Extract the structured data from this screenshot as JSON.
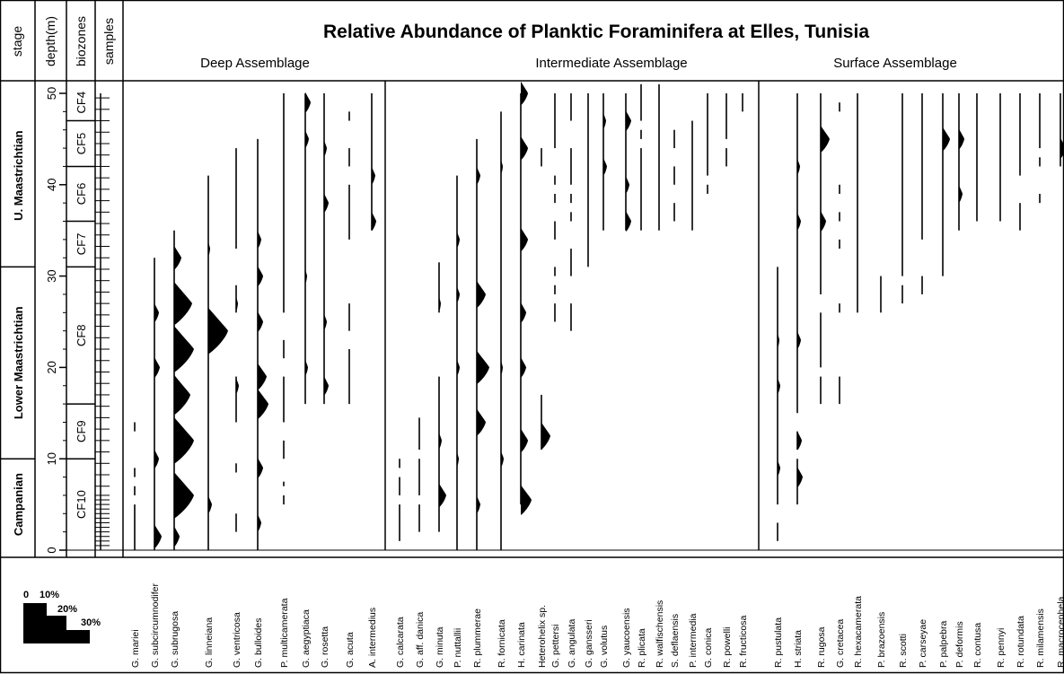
{
  "chart_data": {
    "type": "area",
    "title": "Relative Abundance of Planktic Foraminifera at Elles, Tunisia",
    "header_labels": {
      "stage": "stage",
      "depth": "depth(m)",
      "biozones": "biozones",
      "samples": "samples"
    },
    "assemblages": [
      {
        "name": "Deep Assemblage"
      },
      {
        "name": "Intermediate Assemblage"
      },
      {
        "name": "Surface Assemblage"
      }
    ],
    "depth_axis": {
      "range": [
        0,
        51
      ],
      "ticks": [
        "0",
        "10",
        "20",
        "30",
        "40",
        "50"
      ],
      "tick_values": [
        0,
        10,
        20,
        30,
        40,
        50
      ]
    },
    "stages": [
      {
        "name": "Campanian",
        "from": 0,
        "to": 10
      },
      {
        "name": "Lower Maastrichtian",
        "from": 10,
        "to": 31
      },
      {
        "name": "U. Maastrichtian",
        "from": 31,
        "to": 51
      }
    ],
    "biozones": [
      {
        "name": "CF10",
        "from": 0,
        "to": 10
      },
      {
        "name": "CF9",
        "from": 10,
        "to": 16
      },
      {
        "name": "CF8",
        "from": 16,
        "to": 31
      },
      {
        "name": "CF7",
        "from": 31,
        "to": 36
      },
      {
        "name": "CF6",
        "from": 36,
        "to": 42
      },
      {
        "name": "CF5",
        "from": 42,
        "to": 47
      },
      {
        "name": "CF4",
        "from": 47,
        "to": 51
      }
    ],
    "scale_labels": [
      "0",
      "10%",
      "20%",
      "30%"
    ],
    "scale_levels": [
      0,
      10,
      20,
      30
    ],
    "species": [
      {
        "name": "G. mariei",
        "group": 0,
        "range": [
          [
            0,
            5
          ],
          [
            6,
            7
          ],
          [
            8,
            9
          ],
          [
            13,
            14
          ]
        ],
        "peaks": []
      },
      {
        "name": "G. subcircumnodifer",
        "group": 0,
        "range": [
          [
            0,
            32
          ]
        ],
        "peaks": [
          [
            1.5,
            8
          ],
          [
            10,
            5
          ],
          [
            20,
            6
          ],
          [
            26,
            5
          ]
        ]
      },
      {
        "name": "G. subrugosa",
        "group": 0,
        "range": [
          [
            0,
            35
          ]
        ],
        "peaks": [
          [
            1.5,
            6
          ],
          [
            6,
            22
          ],
          [
            12,
            22
          ],
          [
            17,
            18
          ],
          [
            22,
            22
          ],
          [
            27,
            20
          ],
          [
            32,
            8
          ]
        ]
      },
      {
        "name": "G. linneiana",
        "group": 0,
        "range": [
          [
            0,
            41
          ]
        ],
        "peaks": [
          [
            5,
            4
          ],
          [
            24,
            22
          ],
          [
            33,
            2
          ]
        ]
      },
      {
        "name": "G. ventricosa",
        "group": 0,
        "range": [
          [
            2,
            4
          ],
          [
            8.5,
            9.5
          ],
          [
            14,
            19
          ],
          [
            26,
            29
          ],
          [
            33,
            44
          ]
        ],
        "peaks": [
          [
            18,
            3
          ],
          [
            27,
            2
          ]
        ]
      },
      {
        "name": "G. bulloides",
        "group": 0,
        "range": [
          [
            0,
            45
          ]
        ],
        "peaks": [
          [
            3,
            4
          ],
          [
            9,
            6
          ],
          [
            16,
            12
          ],
          [
            19,
            10
          ],
          [
            25,
            6
          ],
          [
            30,
            6
          ],
          [
            34,
            4
          ]
        ]
      },
      {
        "name": "P. multicamerata",
        "group": 0,
        "range": [
          [
            5,
            6
          ],
          [
            7,
            7.5
          ],
          [
            10,
            12
          ],
          [
            14,
            19
          ],
          [
            21,
            23
          ],
          [
            26,
            50
          ]
        ],
        "peaks": []
      },
      {
        "name": "G. aegyptiaca",
        "group": 0,
        "range": [
          [
            16,
            50
          ]
        ],
        "peaks": [
          [
            20,
            3
          ],
          [
            30,
            2
          ],
          [
            45,
            4
          ],
          [
            49,
            6
          ]
        ]
      },
      {
        "name": "G. rosetta",
        "group": 0,
        "range": [
          [
            16,
            50
          ]
        ],
        "peaks": [
          [
            18,
            5
          ],
          [
            25,
            3
          ],
          [
            38,
            5
          ],
          [
            44,
            3
          ]
        ]
      },
      {
        "name": "G. acuta",
        "group": 0,
        "range": [
          [
            16,
            22
          ],
          [
            24,
            27
          ],
          [
            34,
            40
          ],
          [
            42,
            44
          ],
          [
            47,
            48
          ]
        ],
        "peaks": []
      },
      {
        "name": "A. intermedius",
        "group": 0,
        "range": [
          [
            35,
            50
          ]
        ],
        "peaks": [
          [
            36,
            5
          ],
          [
            41,
            4
          ]
        ]
      },
      {
        "name": "G. calcarata",
        "group": 1,
        "range": [
          [
            1,
            5
          ],
          [
            6,
            8
          ],
          [
            9,
            10
          ]
        ],
        "peaks": []
      },
      {
        "name": "G. aff. danica",
        "group": 1,
        "range": [
          [
            2,
            5
          ],
          [
            6,
            10
          ],
          [
            11,
            14.5
          ]
        ],
        "peaks": []
      },
      {
        "name": "G. minuta",
        "group": 1,
        "range": [
          [
            2,
            19
          ],
          [
            26,
            31.5
          ]
        ],
        "peaks": [
          [
            6,
            8
          ],
          [
            12,
            3
          ],
          [
            27,
            2
          ]
        ]
      },
      {
        "name": "P. nuttallii",
        "group": 1,
        "range": [
          [
            0,
            41
          ]
        ],
        "peaks": [
          [
            10,
            2
          ],
          [
            20,
            3
          ],
          [
            28,
            3
          ],
          [
            34,
            3
          ]
        ]
      },
      {
        "name": "R. plummerae",
        "group": 1,
        "range": [
          [
            0,
            45
          ]
        ],
        "peaks": [
          [
            5,
            4
          ],
          [
            14,
            10
          ],
          [
            20,
            14
          ],
          [
            28,
            10
          ],
          [
            41,
            4
          ]
        ]
      },
      {
        "name": "R. fornicata",
        "group": 1,
        "range": [
          [
            0,
            48
          ]
        ],
        "peaks": [
          [
            10,
            3
          ],
          [
            20,
            2
          ],
          [
            42,
            2
          ]
        ]
      },
      {
        "name": "H. carinata",
        "group": 1,
        "range": [
          [
            5,
            50
          ]
        ],
        "peaks": [
          [
            5.5,
            12
          ],
          [
            12,
            8
          ],
          [
            20,
            6
          ],
          [
            26,
            6
          ],
          [
            34,
            8
          ],
          [
            44,
            8
          ],
          [
            50,
            8
          ]
        ]
      },
      {
        "name": "Heterohelix sp.",
        "group": 1,
        "range": [
          [
            11,
            17
          ],
          [
            42,
            44
          ]
        ],
        "peaks": [
          [
            12.5,
            10
          ]
        ]
      },
      {
        "name": "G. pettersi",
        "group": 1,
        "range": [
          [
            25,
            27
          ],
          [
            28,
            29
          ],
          [
            30,
            31
          ],
          [
            34,
            36
          ],
          [
            38,
            39
          ],
          [
            40,
            41
          ],
          [
            44,
            50
          ]
        ],
        "peaks": []
      },
      {
        "name": "G. angulata",
        "group": 1,
        "range": [
          [
            24,
            27
          ],
          [
            30,
            33
          ],
          [
            36,
            37
          ],
          [
            38,
            39
          ],
          [
            40,
            44
          ],
          [
            47,
            50
          ]
        ],
        "peaks": []
      },
      {
        "name": "G. gansseri",
        "group": 1,
        "range": [
          [
            31,
            50
          ]
        ],
        "peaks": []
      },
      {
        "name": "G. volutus",
        "group": 1,
        "range": [
          [
            35,
            50
          ]
        ],
        "peaks": [
          [
            42,
            4
          ],
          [
            47,
            3
          ]
        ]
      },
      {
        "name": "G. yaucoensis",
        "group": 1,
        "range": [
          [
            35,
            50
          ]
        ],
        "peaks": [
          [
            36,
            6
          ],
          [
            40,
            4
          ],
          [
            47,
            6
          ]
        ]
      },
      {
        "name": "R. plicata",
        "group": 1,
        "range": [
          [
            35,
            44
          ],
          [
            45,
            46
          ],
          [
            47,
            51
          ]
        ],
        "peaks": []
      },
      {
        "name": "R. walfischensis",
        "group": 1,
        "range": [
          [
            35,
            51
          ]
        ],
        "peaks": []
      },
      {
        "name": "S. deflaensis",
        "group": 1,
        "range": [
          [
            36,
            38
          ],
          [
            40,
            42
          ],
          [
            44,
            46
          ]
        ],
        "peaks": []
      },
      {
        "name": "P. intermedia",
        "group": 1,
        "range": [
          [
            35,
            47
          ]
        ],
        "peaks": []
      },
      {
        "name": "G. conica",
        "group": 1,
        "range": [
          [
            39,
            40
          ],
          [
            41,
            50
          ]
        ],
        "peaks": []
      },
      {
        "name": "R. powelli",
        "group": 1,
        "range": [
          [
            42,
            44
          ],
          [
            45,
            50
          ]
        ],
        "peaks": []
      },
      {
        "name": "R. fructicosa",
        "group": 1,
        "range": [
          [
            48,
            50
          ]
        ],
        "peaks": []
      },
      {
        "name": "R. pustulata",
        "group": 2,
        "range": [
          [
            1,
            3
          ],
          [
            5,
            31
          ]
        ],
        "peaks": [
          [
            9,
            3
          ],
          [
            18,
            3
          ],
          [
            23,
            2
          ]
        ]
      },
      {
        "name": "H. striata",
        "group": 2,
        "range": [
          [
            5,
            10
          ],
          [
            11,
            13
          ],
          [
            15,
            50
          ]
        ],
        "peaks": [
          [
            8,
            6
          ],
          [
            12,
            5
          ],
          [
            23,
            4
          ],
          [
            36,
            4
          ],
          [
            42,
            3
          ]
        ]
      },
      {
        "name": "R. rugosa",
        "group": 2,
        "range": [
          [
            16,
            19
          ],
          [
            20,
            26
          ],
          [
            28,
            50
          ]
        ],
        "peaks": [
          [
            36,
            6
          ],
          [
            45,
            10
          ]
        ]
      },
      {
        "name": "G. cretacea",
        "group": 2,
        "range": [
          [
            16,
            19
          ],
          [
            26,
            27
          ],
          [
            33,
            34
          ],
          [
            36,
            37
          ],
          [
            39,
            40
          ],
          [
            48,
            49
          ]
        ],
        "peaks": []
      },
      {
        "name": "R. hexacamerata",
        "group": 2,
        "range": [
          [
            26,
            50
          ]
        ],
        "peaks": []
      },
      {
        "name": "P. brazoensis",
        "group": 2,
        "range": [
          [
            26,
            30
          ]
        ],
        "peaks": []
      },
      {
        "name": "R. scotti",
        "group": 2,
        "range": [
          [
            27,
            29
          ],
          [
            30,
            50
          ]
        ],
        "peaks": []
      },
      {
        "name": "P. carseyae",
        "group": 2,
        "range": [
          [
            28,
            30
          ],
          [
            34,
            50
          ]
        ],
        "peaks": []
      },
      {
        "name": "P. palpebra",
        "group": 2,
        "range": [
          [
            30,
            50
          ]
        ],
        "peaks": [
          [
            45,
            8
          ]
        ]
      },
      {
        "name": "P. deformis",
        "group": 2,
        "range": [
          [
            35,
            50
          ]
        ],
        "peaks": [
          [
            39,
            4
          ],
          [
            45,
            6
          ]
        ]
      },
      {
        "name": "R. contusa",
        "group": 2,
        "range": [
          [
            36,
            50
          ]
        ],
        "peaks": []
      },
      {
        "name": "R. pennyi",
        "group": 2,
        "range": [
          [
            36,
            50
          ]
        ],
        "peaks": []
      },
      {
        "name": "R. rotundata",
        "group": 2,
        "range": [
          [
            35,
            38
          ],
          [
            41,
            50
          ]
        ],
        "peaks": []
      },
      {
        "name": "R. milamensis",
        "group": 2,
        "range": [
          [
            38,
            39
          ],
          [
            42,
            43
          ],
          [
            44,
            50
          ]
        ],
        "peaks": []
      },
      {
        "name": "R. macrocephela",
        "group": 2,
        "range": [
          [
            42,
            50
          ]
        ],
        "peaks": [
          [
            44,
            6
          ]
        ]
      }
    ]
  }
}
